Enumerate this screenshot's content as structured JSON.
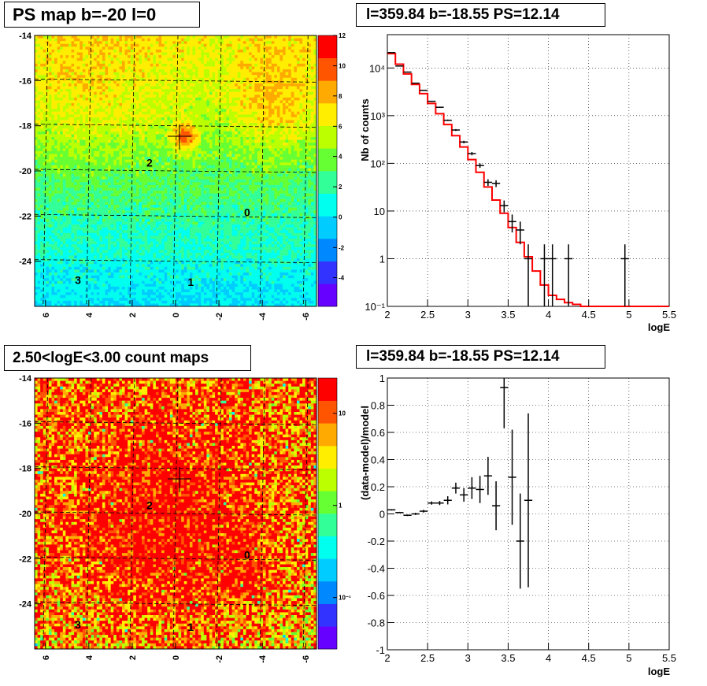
{
  "panels": {
    "tl": {
      "title": "PS map b=-20 l=0",
      "x_ticks": [
        "6",
        "4",
        "2",
        "0",
        "-2",
        "-4",
        "-6"
      ],
      "y_ticks": [
        "-14",
        "-16",
        "-18",
        "-20",
        "-22",
        "-24"
      ],
      "colorbar_ticks": [
        "12",
        "10",
        "8",
        "6",
        "4",
        "2",
        "0",
        "-2",
        "-4"
      ],
      "markers": [
        "0",
        "1",
        "2",
        "3"
      ]
    },
    "tr": {
      "title": "l=359.84 b=-18.55 PS=12.14",
      "xlabel": "logE",
      "ylabel": "Nb of counts",
      "x_ticks": [
        "2",
        "2.5",
        "3",
        "3.5",
        "4",
        "4.5",
        "5",
        "5.5"
      ],
      "y_ticks": [
        "10⁻¹",
        "1",
        "10",
        "10²",
        "10³",
        "10⁴"
      ]
    },
    "bl": {
      "title": "2.50<logE<3.00 count maps",
      "x_ticks": [
        "6",
        "4",
        "2",
        "0",
        "-2",
        "-4",
        "-6"
      ],
      "y_ticks": [
        "-14",
        "-16",
        "-18",
        "-20",
        "-22",
        "-24"
      ],
      "colorbar_ticks": [
        "10",
        "1",
        "10⁻¹"
      ],
      "markers": [
        "0",
        "1",
        "2",
        "3"
      ]
    },
    "br": {
      "title": "l=359.84 b=-18.55 PS=12.14",
      "xlabel": "logE",
      "ylabel": "(data-model)/model",
      "x_ticks": [
        "2",
        "2.5",
        "3",
        "3.5",
        "4",
        "4.5",
        "5",
        "5.5"
      ],
      "y_ticks": [
        "1",
        "0.8",
        "0.6",
        "0.4",
        "0.2",
        "0",
        "-0.2",
        "-0.4",
        "-0.6",
        "-0.8",
        "-1"
      ]
    }
  },
  "chart_data": [
    {
      "type": "heatmap",
      "title": "PS map b=-20 l=0",
      "xlim": [
        6.5,
        -6.5
      ],
      "ylim": [
        -26,
        -14
      ],
      "zlim": [
        -5,
        12
      ],
      "colorscale": [
        "#6600ff",
        "#3333ff",
        "#0088ff",
        "#00ccff",
        "#00ffee",
        "#33ff99",
        "#66ff33",
        "#bbff00",
        "#ffee00",
        "#ffaa00",
        "#ff5500",
        "#ff0000"
      ],
      "source_marker": {
        "l": -0.2,
        "b": -18.5
      },
      "labels": [
        {
          "text": "0",
          "l": -3.3,
          "b": -22.0
        },
        {
          "text": "1",
          "l": -0.7,
          "b": -25.1
        },
        {
          "text": "2",
          "l": 1.2,
          "b": -19.8
        },
        {
          "text": "3",
          "l": 4.5,
          "b": -25.0
        }
      ]
    },
    {
      "type": "line",
      "title": "l=359.84 b=-18.55 PS=12.14",
      "xlabel": "logE",
      "ylabel": "Nb of counts",
      "xlim": [
        2,
        5.5
      ],
      "ylim": [
        0.1,
        50000
      ],
      "yscale": "log",
      "grid": true,
      "data_points": [
        {
          "x": 2.05,
          "y": 21000
        },
        {
          "x": 2.15,
          "y": 11000
        },
        {
          "x": 2.25,
          "y": 8200
        },
        {
          "x": 2.35,
          "y": 4800
        },
        {
          "x": 2.45,
          "y": 3400
        },
        {
          "x": 2.55,
          "y": 2000
        },
        {
          "x": 2.65,
          "y": 1500
        },
        {
          "x": 2.75,
          "y": 800
        },
        {
          "x": 2.85,
          "y": 500
        },
        {
          "x": 2.95,
          "y": 280
        },
        {
          "x": 3.05,
          "y": 160
        },
        {
          "x": 3.15,
          "y": 90
        },
        {
          "x": 3.25,
          "y": 40
        },
        {
          "x": 3.35,
          "y": 38
        },
        {
          "x": 3.45,
          "y": 13
        },
        {
          "x": 3.55,
          "y": 6
        },
        {
          "x": 3.65,
          "y": 4
        },
        {
          "x": 3.75,
          "y": 1
        },
        {
          "x": 3.95,
          "y": 1
        },
        {
          "x": 4.05,
          "y": 1
        },
        {
          "x": 4.25,
          "y": 1
        },
        {
          "x": 4.95,
          "y": 1
        }
      ],
      "model_step": {
        "edges": [
          2.0,
          2.1,
          2.2,
          2.3,
          2.4,
          2.5,
          2.6,
          2.7,
          2.8,
          2.9,
          3.0,
          3.1,
          3.2,
          3.3,
          3.4,
          3.5,
          3.6,
          3.7,
          3.8,
          3.9,
          4.0,
          4.1,
          4.2,
          4.3,
          4.4,
          5.5
        ],
        "values": [
          20000,
          12000,
          7500,
          4500,
          2900,
          1800,
          1100,
          650,
          380,
          220,
          120,
          65,
          32,
          17,
          9,
          4.5,
          2.2,
          1.1,
          0.55,
          0.28,
          0.17,
          0.14,
          0.12,
          0.11,
          0.1
        ]
      },
      "colors": {
        "data": "#000000",
        "model": "#ff0000"
      }
    },
    {
      "type": "heatmap",
      "title": "2.50<logE<3.00 count maps",
      "xlim": [
        6.5,
        -6.5
      ],
      "ylim": [
        -26,
        -14
      ],
      "zscale": "log",
      "zlim": [
        0.05,
        30
      ],
      "colorscale": [
        "#6600ff",
        "#3333ff",
        "#0088ff",
        "#00ccff",
        "#00ffee",
        "#33ff99",
        "#66ff33",
        "#bbff00",
        "#ffee00",
        "#ffaa00",
        "#ff5500",
        "#ff0000"
      ],
      "source_marker": {
        "l": -0.2,
        "b": -18.5
      },
      "labels": [
        {
          "text": "0",
          "l": -3.3,
          "b": -22.0
        },
        {
          "text": "1",
          "l": -0.7,
          "b": -25.2
        },
        {
          "text": "2",
          "l": 1.2,
          "b": -19.8
        },
        {
          "text": "3",
          "l": 4.5,
          "b": -25.1
        }
      ]
    },
    {
      "type": "scatter",
      "title": "l=359.84 b=-18.55 PS=12.14",
      "xlabel": "logE",
      "ylabel": "(data-model)/model",
      "xlim": [
        2,
        5.5
      ],
      "ylim": [
        -1,
        1
      ],
      "grid": true,
      "points": [
        {
          "x": 2.05,
          "y": 0.03,
          "err": 0.005
        },
        {
          "x": 2.15,
          "y": 0.01,
          "err": 0.005
        },
        {
          "x": 2.25,
          "y": -0.01,
          "err": 0.006
        },
        {
          "x": 2.35,
          "y": 0.0,
          "err": 0.008
        },
        {
          "x": 2.45,
          "y": 0.02,
          "err": 0.01
        },
        {
          "x": 2.55,
          "y": 0.08,
          "err": 0.012
        },
        {
          "x": 2.65,
          "y": 0.08,
          "err": 0.015
        },
        {
          "x": 2.75,
          "y": 0.1,
          "err": 0.03
        },
        {
          "x": 2.85,
          "y": 0.19,
          "err": 0.04
        },
        {
          "x": 2.95,
          "y": 0.14,
          "err": 0.05
        },
        {
          "x": 3.05,
          "y": 0.19,
          "err": 0.08
        },
        {
          "x": 3.15,
          "y": 0.18,
          "err": 0.1
        },
        {
          "x": 3.25,
          "y": 0.28,
          "err": 0.14
        },
        {
          "x": 3.35,
          "y": 0.06,
          "err": 0.18
        },
        {
          "x": 3.45,
          "y": 0.93,
          "err": 0.3
        },
        {
          "x": 3.55,
          "y": 0.27,
          "err": 0.35
        },
        {
          "x": 3.65,
          "y": -0.2,
          "err": 0.35
        },
        {
          "x": 3.75,
          "y": 0.1,
          "err": 0.64
        }
      ]
    }
  ]
}
